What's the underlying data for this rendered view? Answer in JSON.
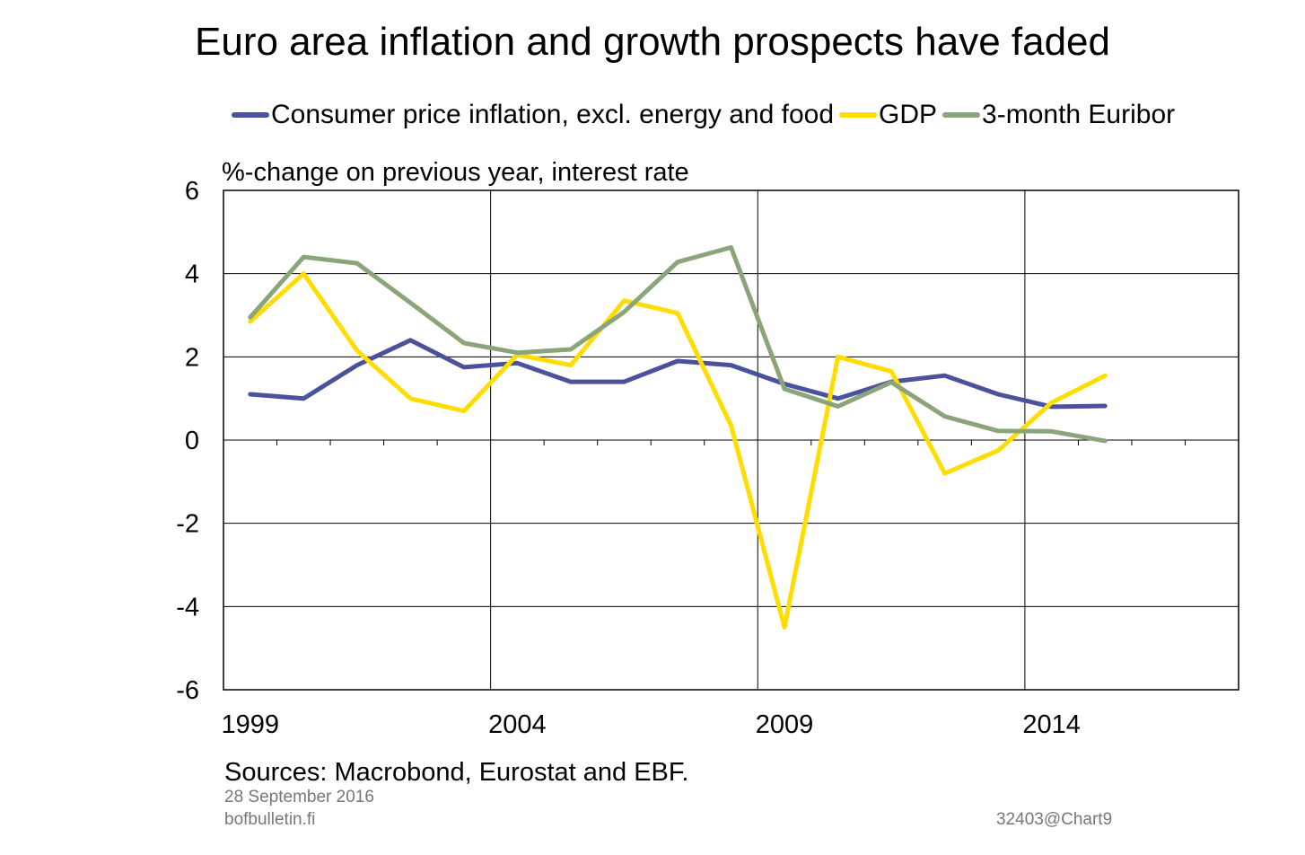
{
  "chart_data": {
    "type": "line",
    "title": "Euro area inflation and growth prospects have faded",
    "ylabel": "%-change on previous year, interest rate",
    "xlabel": "",
    "ylim": [
      -6,
      6
    ],
    "yticks": [
      6,
      4,
      2,
      0,
      -2,
      -4,
      -6
    ],
    "xlim": [
      1998.5,
      2017.5
    ],
    "xtick_labels": [
      "1999",
      "2004",
      "2009",
      "2014"
    ],
    "x": [
      1999,
      2000,
      2001,
      2002,
      2003,
      2004,
      2005,
      2006,
      2007,
      2008,
      2009,
      2010,
      2011,
      2012,
      2013,
      2014,
      2015
    ],
    "grid": true,
    "legend_position": "top",
    "series": [
      {
        "name": "Consumer price inflation, excl. energy and food",
        "color": "#4a529b",
        "values": [
          1.1,
          1.0,
          1.8,
          2.4,
          1.75,
          1.85,
          1.4,
          1.4,
          1.9,
          1.8,
          1.35,
          1.0,
          1.4,
          1.55,
          1.1,
          0.8,
          0.82
        ]
      },
      {
        "name": "GDP",
        "color": "#ffdd00",
        "values": [
          2.85,
          4.0,
          2.15,
          1.0,
          0.7,
          2.05,
          1.8,
          3.35,
          3.05,
          0.35,
          -4.5,
          2.0,
          1.65,
          -0.8,
          -0.25,
          0.9,
          1.55
        ]
      },
      {
        "name": "3-month Euribor",
        "color": "#8aa57a",
        "values": [
          2.95,
          4.4,
          4.25,
          3.3,
          2.33,
          2.1,
          2.18,
          3.08,
          4.28,
          4.63,
          1.23,
          0.81,
          1.39,
          0.57,
          0.22,
          0.21,
          -0.02
        ]
      }
    ]
  },
  "footer": {
    "sources": "Sources: Macrobond, Eurostat and EBF.",
    "date": "28 September 2016",
    "site": "bofbulletin.fi",
    "chart_id": "32403@Chart9"
  }
}
